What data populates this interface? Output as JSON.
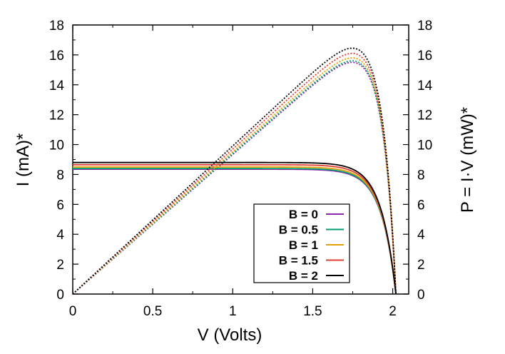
{
  "chart_data": {
    "type": "line",
    "xlabel": "V (Volts)",
    "ylabel_left": "I (mA)*",
    "ylabel_right": "P = I·V (mW)*",
    "xlim": [
      0,
      2.1
    ],
    "ylim": [
      0,
      18
    ],
    "ylim_right": [
      0,
      18
    ],
    "x_ticks": [
      "0",
      "0.5",
      "1",
      "1.5",
      "2"
    ],
    "y_ticks": [
      "0",
      "2",
      "4",
      "6",
      "8",
      "10",
      "12",
      "14",
      "16",
      "18"
    ],
    "y_ticks_right": [
      "0",
      "2",
      "4",
      "6",
      "8",
      "10",
      "12",
      "14",
      "16",
      "18"
    ],
    "grid": false,
    "legend_position": "bottom-right",
    "voc": 2.02,
    "series": [
      {
        "name": "B = 0",
        "color": "#8e24aa",
        "current_mA": 8.35,
        "peak_power_mW": 15.5,
        "v_mpp": 1.88
      },
      {
        "name": "B = 0.5",
        "color": "#009e73",
        "current_mA": 8.4,
        "peak_power_mW": 15.6,
        "v_mpp": 1.88
      },
      {
        "name": "B = 1",
        "color": "#e69f00",
        "current_mA": 8.5,
        "peak_power_mW": 15.8,
        "v_mpp": 1.88
      },
      {
        "name": "B = 1.5",
        "color": "#e03c31",
        "current_mA": 8.65,
        "peak_power_mW": 16.1,
        "v_mpp": 1.88
      },
      {
        "name": "B = 2",
        "color": "#000000",
        "current_mA": 8.8,
        "peak_power_mW": 16.45,
        "v_mpp": 1.88
      }
    ]
  }
}
